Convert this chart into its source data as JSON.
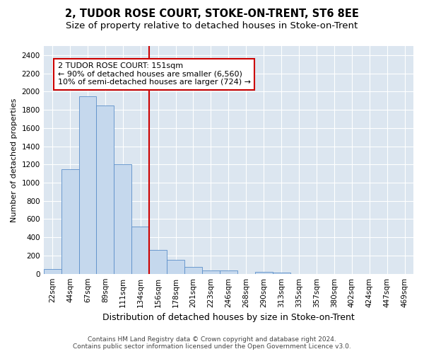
{
  "title": "2, TUDOR ROSE COURT, STOKE-ON-TRENT, ST6 8EE",
  "subtitle": "Size of property relative to detached houses in Stoke-on-Trent",
  "xlabel": "Distribution of detached houses by size in Stoke-on-Trent",
  "ylabel": "Number of detached properties",
  "categories": [
    "22sqm",
    "44sqm",
    "67sqm",
    "89sqm",
    "111sqm",
    "134sqm",
    "156sqm",
    "178sqm",
    "201sqm",
    "223sqm",
    "246sqm",
    "268sqm",
    "290sqm",
    "313sqm",
    "335sqm",
    "357sqm",
    "380sqm",
    "402sqm",
    "424sqm",
    "447sqm",
    "469sqm"
  ],
  "values": [
    50,
    1150,
    1950,
    1850,
    1200,
    520,
    265,
    155,
    75,
    40,
    35,
    0,
    20,
    15,
    0,
    0,
    0,
    0,
    0,
    0,
    0
  ],
  "bar_color": "#c5d8ed",
  "bar_edge_color": "#5b8fc9",
  "highlight_index": 6,
  "highlight_color": "#cc0000",
  "annotation_text": "2 TUDOR ROSE COURT: 151sqm\n← 90% of detached houses are smaller (6,560)\n10% of semi-detached houses are larger (724) →",
  "annotation_box_color": "#ffffff",
  "annotation_box_edge_color": "#cc0000",
  "ylim": [
    0,
    2500
  ],
  "yticks": [
    0,
    200,
    400,
    600,
    800,
    1000,
    1200,
    1400,
    1600,
    1800,
    2000,
    2200,
    2400
  ],
  "footer_text": "Contains HM Land Registry data © Crown copyright and database right 2024.\nContains public sector information licensed under the Open Government Licence v3.0.",
  "plot_bg_color": "#dce6f0",
  "fig_bg_color": "#ffffff",
  "grid_color": "#ffffff",
  "title_fontsize": 10.5,
  "subtitle_fontsize": 9.5,
  "xlabel_fontsize": 9,
  "ylabel_fontsize": 8,
  "tick_fontsize": 7.5,
  "annotation_fontsize": 8,
  "footer_fontsize": 6.5
}
